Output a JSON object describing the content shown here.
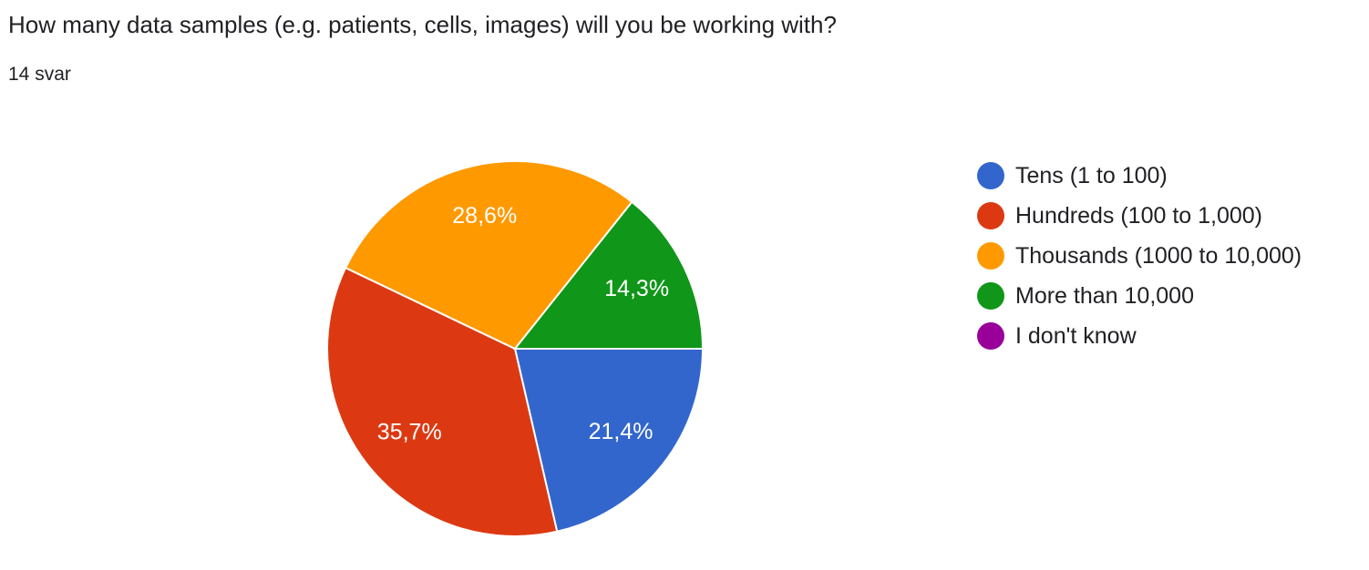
{
  "question": {
    "title": "How many data samples (e.g. patients, cells, images) will you be working with?",
    "responses": "14 svar"
  },
  "chart_data": {
    "type": "pie",
    "title": "",
    "slices": [
      {
        "label": "Tens (1 to 100)",
        "value": 21.4,
        "display": "21,4%",
        "color": "#3366cc"
      },
      {
        "label": "Hundreds (100 to 1,000)",
        "value": 35.7,
        "display": "35,7%",
        "color": "#dc3912"
      },
      {
        "label": "Thousands (1000 to 10,000)",
        "value": 28.6,
        "display": "28,6%",
        "color": "#ff9900"
      },
      {
        "label": "More than 10,000",
        "value": 14.3,
        "display": "14,3%",
        "color": "#109618"
      },
      {
        "label": "I don't know",
        "value": 0,
        "display": "",
        "color": "#990099"
      }
    ],
    "legend_position": "right"
  }
}
